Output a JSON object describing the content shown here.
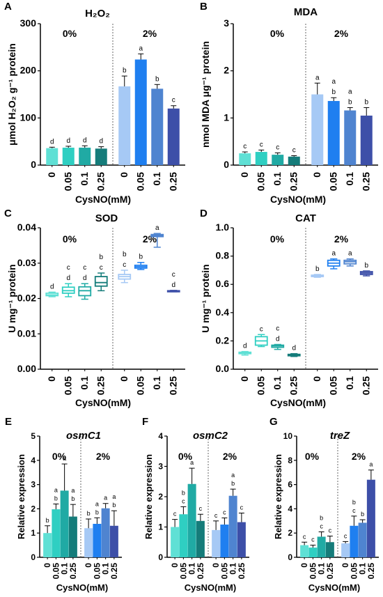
{
  "colors": {
    "pct0": [
      "#5fe0d5",
      "#2fcfc2",
      "#20aaa4",
      "#157c7a"
    ],
    "pct2": [
      "#a6c9f5",
      "#1f7ff0",
      "#4f84d0",
      "#3d4fa8"
    ]
  },
  "chart_data": [
    {
      "type": "bar",
      "panel": "A",
      "title": "H₂O₂",
      "xlabel": "CysNO(mM)",
      "ylabel": "μmol H₂O₂ g⁻¹ protein",
      "ylim": [
        0,
        300
      ],
      "yticks": [
        "0",
        "100",
        "200",
        "300"
      ],
      "groups": [
        "0%",
        "2%"
      ],
      "categories": [
        "0",
        "0.05",
        "0.1",
        "0.25"
      ],
      "series": [
        {
          "values": [
            36,
            37,
            37,
            35
          ],
          "errors": [
            2,
            3,
            4,
            4
          ],
          "letters": [
            "d",
            "d",
            "d",
            "d"
          ]
        },
        {
          "values": [
            167,
            224,
            162,
            120
          ],
          "errors": [
            22,
            12,
            9,
            6
          ],
          "letters": [
            "b",
            "a",
            "b",
            "c"
          ]
        }
      ]
    },
    {
      "type": "bar",
      "panel": "B",
      "title": "MDA",
      "xlabel": "CysNO(mM)",
      "ylabel": "nmol MDA μg⁻¹ protein",
      "ylim": [
        0,
        3
      ],
      "yticks": [
        "0",
        "1",
        "2",
        "3"
      ],
      "groups": [
        "0%",
        "2%"
      ],
      "categories": [
        "0",
        "0.05",
        "0.1",
        "0.25"
      ],
      "series": [
        {
          "values": [
            0.25,
            0.28,
            0.22,
            0.18
          ],
          "errors": [
            0.03,
            0.04,
            0.04,
            0.02
          ],
          "letters": [
            "c",
            "c",
            "c",
            "c"
          ]
        },
        {
          "values": [
            1.5,
            1.36,
            1.16,
            1.05
          ],
          "errors": [
            0.24,
            0.07,
            0.06,
            0.17
          ],
          "letters": [
            "a",
            "a\nb",
            "a\nb",
            "b"
          ]
        }
      ]
    },
    {
      "type": "box",
      "panel": "C",
      "title": "SOD",
      "xlabel": "CysNO(mM)",
      "ylabel": "U mg⁻¹ protein",
      "ylim": [
        0,
        0.04
      ],
      "yticks": [
        "0.00",
        "0.01",
        "0.02",
        "0.03",
        "0.04"
      ],
      "groups": [
        "0%",
        "2%"
      ],
      "categories": [
        "0",
        "0.05",
        "0.1",
        "0.25"
      ],
      "series": [
        {
          "box": [
            [
              0.0205,
              0.0208,
              0.021,
              0.0215,
              0.0218
            ],
            [
              0.0205,
              0.0215,
              0.0222,
              0.0232,
              0.0242
            ],
            [
              0.0198,
              0.0208,
              0.0222,
              0.0233,
              0.0242
            ],
            [
              0.0222,
              0.0235,
              0.0245,
              0.0262,
              0.0272
            ]
          ],
          "letters": [
            "d",
            "c\nd",
            "c\nd",
            "b\nc"
          ]
        },
        {
          "box": [
            [
              0.0245,
              0.0255,
              0.0262,
              0.0268,
              0.028
            ],
            [
              0.0282,
              0.0286,
              0.029,
              0.0294,
              0.0302
            ],
            [
              0.0345,
              0.0375,
              0.0378,
              0.0381,
              0.0384
            ],
            [
              0.0219,
              0.022,
              0.0221,
              0.0222,
              0.0223
            ]
          ],
          "letters": [
            "b\nc",
            "b",
            "a",
            "c\nd"
          ]
        }
      ]
    },
    {
      "type": "box",
      "panel": "D",
      "title": "CAT",
      "xlabel": "CysNO(mM)",
      "ylabel": "U mg⁻¹ protein",
      "ylim": [
        0,
        1.0
      ],
      "yticks": [
        "0.0",
        "0.2",
        "0.4",
        "0.6",
        "0.8",
        "1.0"
      ],
      "groups": [
        "0%",
        "2%"
      ],
      "categories": [
        "0",
        "0.05",
        "0.1",
        "0.25"
      ],
      "series": [
        {
          "box": [
            [
              0.1,
              0.11,
              0.115,
              0.12,
              0.125
            ],
            [
              0.16,
              0.17,
              0.2,
              0.23,
              0.245
            ],
            [
              0.14,
              0.155,
              0.165,
              0.17,
              0.175
            ],
            [
              0.09,
              0.095,
              0.1,
              0.105,
              0.11
            ]
          ],
          "letters": [
            "d",
            "c",
            "c\nd",
            "d"
          ]
        },
        {
          "box": [
            [
              0.65,
              0.655,
              0.66,
              0.665,
              0.67
            ],
            [
              0.71,
              0.73,
              0.75,
              0.77,
              0.78
            ],
            [
              0.73,
              0.745,
              0.76,
              0.77,
              0.78
            ],
            [
              0.66,
              0.67,
              0.68,
              0.69,
              0.695
            ]
          ],
          "letters": [
            "b",
            "a",
            "a",
            "b"
          ]
        }
      ]
    },
    {
      "type": "bar",
      "panel": "E",
      "title": "osmC1",
      "title_italic": true,
      "xlabel": "CysNO(mM)",
      "ylabel": "Relative expression",
      "ylim": [
        0,
        5
      ],
      "yticks": [
        "0",
        "1",
        "2",
        "3",
        "4",
        "5"
      ],
      "groups": [
        "0%",
        "2%"
      ],
      "categories": [
        "0",
        "0.05",
        "0.1",
        "0.25"
      ],
      "series": [
        {
          "values": [
            1.0,
            1.98,
            2.75,
            1.68
          ],
          "errors": [
            0.3,
            0.22,
            1.1,
            0.5
          ],
          "letters": [
            "b",
            "a\nb",
            "a",
            "a\nb"
          ]
        },
        {
          "values": [
            1.2,
            1.38,
            2.02,
            1.3
          ],
          "errors": [
            0.38,
            0.25,
            0.2,
            0.62
          ],
          "letters": [
            "b",
            "a\nb",
            "a",
            "a\nb"
          ]
        }
      ]
    },
    {
      "type": "bar",
      "panel": "F",
      "title": "osmC2",
      "title_italic": true,
      "xlabel": "CysNO(mM)",
      "ylabel": "Relative expression",
      "ylim": [
        0,
        4
      ],
      "yticks": [
        "0",
        "1",
        "2",
        "3",
        "4"
      ],
      "groups": [
        "0%",
        "2%"
      ],
      "categories": [
        "0",
        "0.05",
        "0.1",
        "0.25"
      ],
      "series": [
        {
          "values": [
            1.0,
            1.42,
            2.42,
            1.2
          ],
          "errors": [
            0.25,
            0.25,
            0.52,
            0.22
          ],
          "letters": [
            "c",
            "b\nc",
            "a",
            "c"
          ]
        },
        {
          "values": [
            0.9,
            1.08,
            2.03,
            1.16
          ],
          "errors": [
            0.3,
            0.22,
            0.22,
            0.3
          ],
          "letters": [
            "c",
            "c",
            "a\nb",
            "c"
          ]
        }
      ]
    },
    {
      "type": "bar",
      "panel": "G",
      "title": "treZ",
      "title_italic": true,
      "xlabel": "CysNO(mM)",
      "ylabel": "Relative expression",
      "ylim": [
        0,
        10
      ],
      "yticks": [
        "0",
        "2",
        "4",
        "6",
        "8",
        "10"
      ],
      "groups": [
        "0%",
        "2%"
      ],
      "categories": [
        "0",
        "0.05",
        "0.1",
        "0.25"
      ],
      "series": [
        {
          "values": [
            1.0,
            0.8,
            1.7,
            1.25
          ],
          "errors": [
            0.25,
            0.2,
            0.4,
            0.5
          ],
          "letters": [
            "c",
            "c",
            "b\nc",
            "c"
          ]
        },
        {
          "values": [
            1.15,
            2.6,
            2.85,
            6.4
          ],
          "errors": [
            0.15,
            0.8,
            0.25,
            0.8
          ],
          "letters": [
            "c",
            "b\nc",
            "b",
            "a"
          ]
        }
      ]
    }
  ]
}
